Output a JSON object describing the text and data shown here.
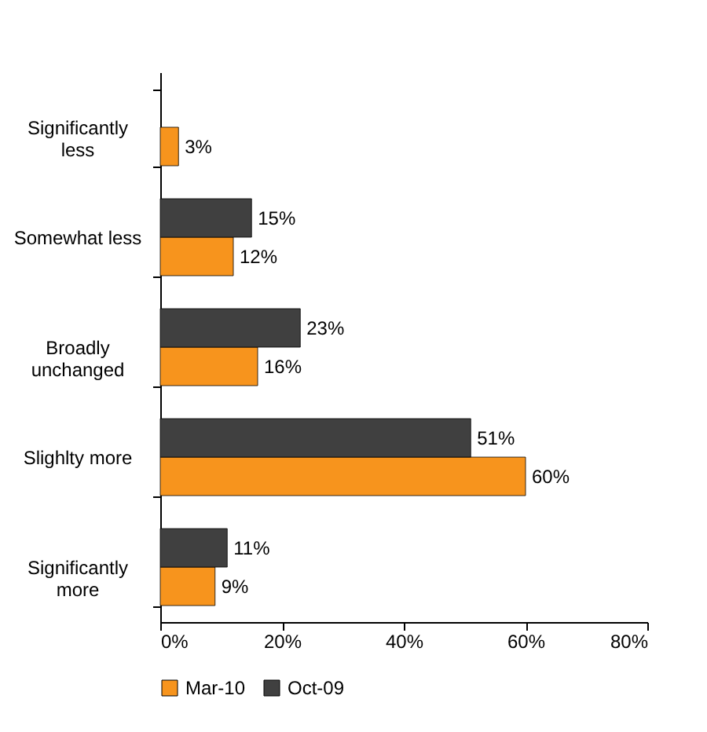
{
  "chart_data": {
    "type": "bar",
    "orientation": "horizontal",
    "categories": [
      "Significantly less",
      "Somewhat less",
      "Broadly unchanged",
      "Slighlty more",
      "Significantly more"
    ],
    "series": [
      {
        "name": "Mar-10",
        "color": "#f7941d",
        "values": [
          3,
          12,
          16,
          60,
          9
        ],
        "value_labels": [
          "3%",
          "12%",
          "16%",
          "60%",
          "9%"
        ]
      },
      {
        "name": "Oct-09",
        "color": "#404040",
        "values": [
          null,
          15,
          23,
          51,
          11
        ],
        "value_labels": [
          null,
          "15%",
          "23%",
          "51%",
          "11%"
        ]
      }
    ],
    "xlim": [
      0,
      80
    ],
    "xticks": [
      {
        "value": 0,
        "label": "0%"
      },
      {
        "value": 20,
        "label": "20%"
      },
      {
        "value": 40,
        "label": "40%"
      },
      {
        "value": 60,
        "label": "60%"
      },
      {
        "value": 80,
        "label": "80%"
      }
    ],
    "grid": false,
    "legend": "bottom"
  }
}
